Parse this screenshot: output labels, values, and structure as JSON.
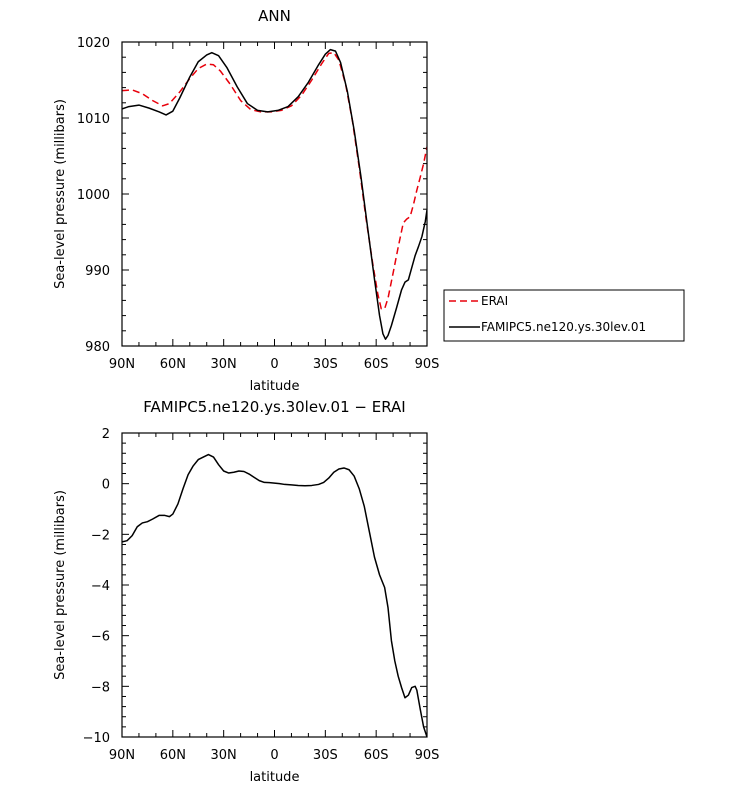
{
  "chart_data": [
    {
      "type": "line",
      "title": "ANN",
      "xlabel": "latitude",
      "ylabel": "Sea-level pressure (millibars)",
      "xlim": [
        90,
        -90
      ],
      "ylim": [
        980,
        1020
      ],
      "xticks": [
        {
          "value": 90,
          "label": "90N"
        },
        {
          "value": 60,
          "label": "60N"
        },
        {
          "value": 30,
          "label": "30N"
        },
        {
          "value": 0,
          "label": "0"
        },
        {
          "value": -30,
          "label": "30S"
        },
        {
          "value": -60,
          "label": "60S"
        },
        {
          "value": -90,
          "label": "90S"
        }
      ],
      "yticks": [
        980,
        990,
        1000,
        1010,
        1020
      ],
      "legend_position": "outside-right",
      "series": [
        {
          "name": "ERAI",
          "color": "#e8000b",
          "dash": "dashed",
          "points": [
            [
              90,
              1013.6
            ],
            [
              84,
              1013.7
            ],
            [
              78,
              1013.2
            ],
            [
              72,
              1012.3
            ],
            [
              66,
              1011.6
            ],
            [
              62,
              1011.9
            ],
            [
              56,
              1013.4
            ],
            [
              50,
              1015.2
            ],
            [
              45,
              1016.5
            ],
            [
              40,
              1017.1
            ],
            [
              36,
              1017.0
            ],
            [
              32,
              1016.2
            ],
            [
              26,
              1014.4
            ],
            [
              20,
              1012.3
            ],
            [
              14,
              1011.1
            ],
            [
              8,
              1010.8
            ],
            [
              2,
              1010.8
            ],
            [
              -4,
              1011.0
            ],
            [
              -10,
              1011.6
            ],
            [
              -16,
              1013.0
            ],
            [
              -22,
              1015.0
            ],
            [
              -28,
              1017.2
            ],
            [
              -32,
              1018.5
            ],
            [
              -35,
              1018.6
            ],
            [
              -38,
              1017.6
            ],
            [
              -42,
              1014.4
            ],
            [
              -46,
              1009.6
            ],
            [
              -50,
              1003.5
            ],
            [
              -54,
              996.8
            ],
            [
              -58,
              990.8
            ],
            [
              -61,
              986.8
            ],
            [
              -63,
              984.9
            ],
            [
              -65,
              984.9
            ],
            [
              -67,
              986.3
            ],
            [
              -70,
              989.6
            ],
            [
              -73,
              993.0
            ],
            [
              -76,
              996.2
            ],
            [
              -78,
              996.7
            ],
            [
              -80,
              997.0
            ],
            [
              -82,
              998.6
            ],
            [
              -84,
              1000.5
            ],
            [
              -86,
              1002.2
            ],
            [
              -88,
              1004.0
            ],
            [
              -90,
              1006.2
            ]
          ]
        },
        {
          "name": "FAMIPC5.ne120.ys.30lev.01",
          "color": "#000000",
          "dash": "solid",
          "points": [
            [
              90,
              1011.2
            ],
            [
              86,
              1011.5
            ],
            [
              80,
              1011.7
            ],
            [
              74,
              1011.3
            ],
            [
              68,
              1010.8
            ],
            [
              64,
              1010.4
            ],
            [
              60,
              1010.9
            ],
            [
              56,
              1012.6
            ],
            [
              50,
              1015.4
            ],
            [
              45,
              1017.4
            ],
            [
              40,
              1018.3
            ],
            [
              37,
              1018.6
            ],
            [
              33,
              1018.2
            ],
            [
              28,
              1016.6
            ],
            [
              22,
              1014.1
            ],
            [
              16,
              1011.9
            ],
            [
              10,
              1011.0
            ],
            [
              4,
              1010.8
            ],
            [
              -2,
              1011.0
            ],
            [
              -8,
              1011.5
            ],
            [
              -14,
              1012.8
            ],
            [
              -20,
              1014.7
            ],
            [
              -26,
              1017.0
            ],
            [
              -30,
              1018.4
            ],
            [
              -33,
              1019.0
            ],
            [
              -36,
              1018.8
            ],
            [
              -39,
              1017.3
            ],
            [
              -43,
              1013.5
            ],
            [
              -47,
              1008.4
            ],
            [
              -51,
              1002.3
            ],
            [
              -55,
              995.5
            ],
            [
              -59,
              988.8
            ],
            [
              -62,
              984.0
            ],
            [
              -64,
              981.6
            ],
            [
              -65.5,
              980.9
            ],
            [
              -67,
              981.4
            ],
            [
              -69,
              982.7
            ],
            [
              -72,
              985.0
            ],
            [
              -75,
              987.4
            ],
            [
              -77,
              988.4
            ],
            [
              -79,
              988.7
            ],
            [
              -81,
              990.3
            ],
            [
              -83,
              991.9
            ],
            [
              -85,
              993.1
            ],
            [
              -87,
              994.4
            ],
            [
              -89,
              996.4
            ],
            [
              -90,
              997.9
            ]
          ]
        }
      ]
    },
    {
      "type": "line",
      "title": "FAMIPC5.ne120.ys.30lev.01 − ERAI",
      "xlabel": "latitude",
      "ylabel": "Sea-level pressure (millibars)",
      "xlim": [
        90,
        -90
      ],
      "ylim": [
        -10,
        2
      ],
      "xticks": [
        {
          "value": 90,
          "label": "90N"
        },
        {
          "value": 60,
          "label": "60N"
        },
        {
          "value": 30,
          "label": "30N"
        },
        {
          "value": 0,
          "label": "0"
        },
        {
          "value": -30,
          "label": "30S"
        },
        {
          "value": -60,
          "label": "60S"
        },
        {
          "value": -90,
          "label": "90S"
        }
      ],
      "yticks": [
        {
          "value": 2,
          "label": "2"
        },
        {
          "value": 0,
          "label": "0"
        },
        {
          "value": -2,
          "label": "−2"
        },
        {
          "value": -4,
          "label": "−4"
        },
        {
          "value": -6,
          "label": "−6"
        },
        {
          "value": -8,
          "label": "−8"
        },
        {
          "value": -10,
          "label": "−10"
        }
      ],
      "series": [
        {
          "name": "",
          "color": "#000000",
          "dash": "solid",
          "points": [
            [
              90,
              -2.3
            ],
            [
              87,
              -2.25
            ],
            [
              84,
              -2.05
            ],
            [
              81,
              -1.7
            ],
            [
              78,
              -1.55
            ],
            [
              75,
              -1.5
            ],
            [
              72,
              -1.4
            ],
            [
              68,
              -1.25
            ],
            [
              65,
              -1.25
            ],
            [
              62,
              -1.3
            ],
            [
              60,
              -1.2
            ],
            [
              57,
              -0.8
            ],
            [
              54,
              -0.2
            ],
            [
              51,
              0.35
            ],
            [
              48,
              0.7
            ],
            [
              45,
              0.95
            ],
            [
              42,
              1.05
            ],
            [
              39,
              1.15
            ],
            [
              36,
              1.05
            ],
            [
              33,
              0.75
            ],
            [
              30,
              0.5
            ],
            [
              27,
              0.42
            ],
            [
              24,
              0.45
            ],
            [
              21,
              0.5
            ],
            [
              18,
              0.48
            ],
            [
              15,
              0.38
            ],
            [
              12,
              0.25
            ],
            [
              9,
              0.12
            ],
            [
              6,
              0.05
            ],
            [
              3,
              0.04
            ],
            [
              0,
              0.02
            ],
            [
              -3,
              0.0
            ],
            [
              -6,
              -0.03
            ],
            [
              -10,
              -0.05
            ],
            [
              -14,
              -0.07
            ],
            [
              -18,
              -0.08
            ],
            [
              -22,
              -0.07
            ],
            [
              -26,
              -0.03
            ],
            [
              -29,
              0.05
            ],
            [
              -32,
              0.22
            ],
            [
              -35,
              0.45
            ],
            [
              -38,
              0.58
            ],
            [
              -41,
              0.62
            ],
            [
              -44,
              0.55
            ],
            [
              -47,
              0.3
            ],
            [
              -50,
              -0.2
            ],
            [
              -53,
              -0.9
            ],
            [
              -56,
              -1.9
            ],
            [
              -59,
              -2.9
            ],
            [
              -62,
              -3.6
            ],
            [
              -65,
              -4.1
            ],
            [
              -67,
              -4.9
            ],
            [
              -69,
              -6.2
            ],
            [
              -71,
              -7.0
            ],
            [
              -73,
              -7.6
            ],
            [
              -75,
              -8.05
            ],
            [
              -77,
              -8.45
            ],
            [
              -79,
              -8.35
            ],
            [
              -81,
              -8.05
            ],
            [
              -83,
              -8.0
            ],
            [
              -84,
              -8.15
            ],
            [
              -86,
              -8.9
            ],
            [
              -88,
              -9.6
            ],
            [
              -90,
              -10.0
            ]
          ]
        }
      ]
    }
  ]
}
